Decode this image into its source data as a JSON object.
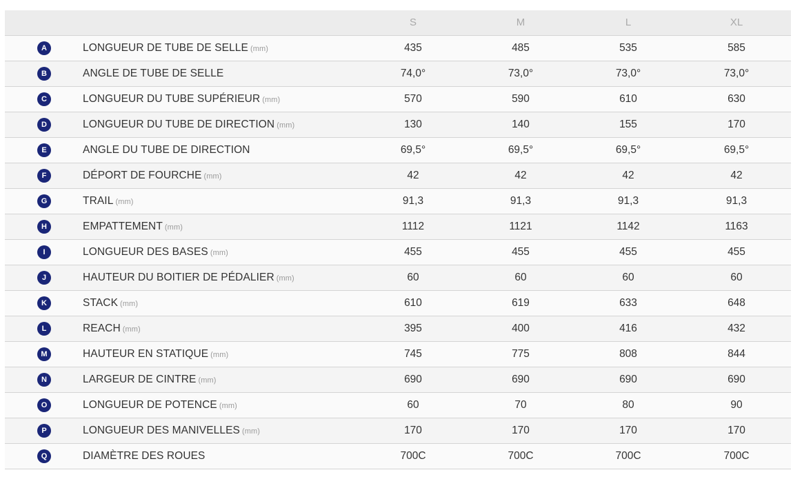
{
  "header": {
    "sizes": [
      "S",
      "M",
      "L",
      "XL"
    ]
  },
  "rows": [
    {
      "letter": "A",
      "label": "LONGUEUR DE TUBE DE SELLE",
      "unit": "(mm)",
      "values": [
        "435",
        "485",
        "535",
        "585"
      ]
    },
    {
      "letter": "B",
      "label": "ANGLE DE TUBE DE SELLE",
      "unit": "",
      "values": [
        "74,0°",
        "73,0°",
        "73,0°",
        "73,0°"
      ]
    },
    {
      "letter": "C",
      "label": "LONGUEUR DU TUBE SUPÉRIEUR",
      "unit": "(mm)",
      "values": [
        "570",
        "590",
        "610",
        "630"
      ]
    },
    {
      "letter": "D",
      "label": "LONGUEUR DU TUBE DE DIRECTION",
      "unit": "(mm)",
      "values": [
        "130",
        "140",
        "155",
        "170"
      ]
    },
    {
      "letter": "E",
      "label": "ANGLE DU TUBE DE DIRECTION",
      "unit": "",
      "values": [
        "69,5°",
        "69,5°",
        "69,5°",
        "69,5°"
      ]
    },
    {
      "letter": "F",
      "label": "DÉPORT DE FOURCHE",
      "unit": "(mm)",
      "values": [
        "42",
        "42",
        "42",
        "42"
      ]
    },
    {
      "letter": "G",
      "label": "TRAIL",
      "unit": "(mm)",
      "values": [
        "91,3",
        "91,3",
        "91,3",
        "91,3"
      ]
    },
    {
      "letter": "H",
      "label": "EMPATTEMENT",
      "unit": "(mm)",
      "values": [
        "1112",
        "1121",
        "1142",
        "1163"
      ]
    },
    {
      "letter": "I",
      "label": "LONGUEUR DES BASES",
      "unit": "(mm)",
      "values": [
        "455",
        "455",
        "455",
        "455"
      ]
    },
    {
      "letter": "J",
      "label": "HAUTEUR DU BOITIER DE PÉDALIER",
      "unit": "(mm)",
      "values": [
        "60",
        "60",
        "60",
        "60"
      ]
    },
    {
      "letter": "K",
      "label": "STACK",
      "unit": "(mm)",
      "values": [
        "610",
        "619",
        "633",
        "648"
      ]
    },
    {
      "letter": "L",
      "label": "REACH",
      "unit": "(mm)",
      "values": [
        "395",
        "400",
        "416",
        "432"
      ]
    },
    {
      "letter": "M",
      "label": "HAUTEUR EN STATIQUE",
      "unit": "(mm)",
      "values": [
        "745",
        "775",
        "808",
        "844"
      ]
    },
    {
      "letter": "N",
      "label": "LARGEUR DE CINTRE",
      "unit": "(mm)",
      "values": [
        "690",
        "690",
        "690",
        "690"
      ]
    },
    {
      "letter": "O",
      "label": "LONGUEUR DE POTENCE",
      "unit": "(mm)",
      "values": [
        "60",
        "70",
        "80",
        "90"
      ]
    },
    {
      "letter": "P",
      "label": "LONGUEUR DES MANIVELLES",
      "unit": "(mm)",
      "values": [
        "170",
        "170",
        "170",
        "170"
      ]
    },
    {
      "letter": "Q",
      "label": "DIAMÈTRE DES ROUES",
      "unit": "",
      "values": [
        "700C",
        "700C",
        "700C",
        "700C"
      ]
    }
  ],
  "colors": {
    "badge": "#1a2678",
    "header_bg": "#ececec",
    "header_text": "#a9a9a9",
    "text": "#333333"
  }
}
